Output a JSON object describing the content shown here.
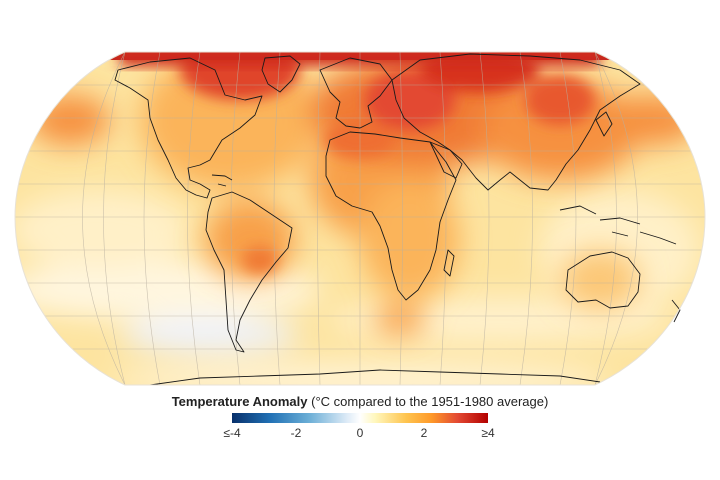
{
  "legend": {
    "title_bold": "Temperature Anomaly",
    "title_rest": " (°C compared to the 1951-1980 average)",
    "ticks": [
      "≤-4",
      "-2",
      "0",
      "2",
      "≥4"
    ],
    "colors": [
      "#08306b",
      "#2171b5",
      "#6baed6",
      "#ffffff",
      "#fec44f",
      "#fe9929",
      "#e34a33",
      "#b30000"
    ]
  },
  "map": {
    "projection": "Robinson",
    "background_color": "#fde9a8",
    "coastline_color": "#1a1a1a"
  }
}
